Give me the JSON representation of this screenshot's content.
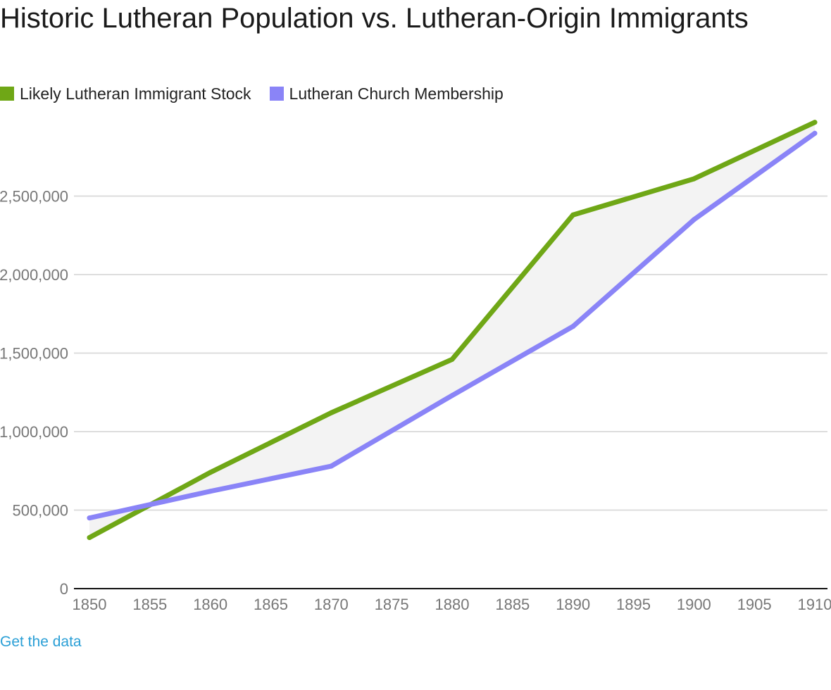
{
  "chart_data": {
    "type": "line",
    "title": "Historic Lutheran Population vs. Lutheran-Origin Immigrants",
    "x": [
      1850,
      1860,
      1870,
      1880,
      1890,
      1900,
      1910
    ],
    "series": [
      {
        "name": "Likely Lutheran Immigrant Stock",
        "color": "#6fa716",
        "values": [
          325000,
          740000,
          1120000,
          1460000,
          2380000,
          2610000,
          2970000
        ]
      },
      {
        "name": "Lutheran Church Membership",
        "color": "#8a84f7",
        "values": [
          450000,
          620000,
          780000,
          1230000,
          1670000,
          2350000,
          2900000
        ]
      }
    ],
    "x_ticks": [
      1850,
      1855,
      1860,
      1865,
      1870,
      1875,
      1880,
      1885,
      1890,
      1895,
      1900,
      1905,
      1910
    ],
    "y_ticks": [
      0,
      500000,
      1000000,
      1500000,
      2000000,
      2500000
    ],
    "y_tick_labels": [
      "0",
      "500,000",
      "1,000,000",
      "1,500,000",
      "2,000,000",
      "2,500,000"
    ],
    "xlim": [
      1850,
      1910
    ],
    "ylim": [
      0,
      3100000
    ],
    "xlabel": "",
    "ylabel": "",
    "grid": "horizontal",
    "legend_position": "top-left",
    "fill_between_color": "#f3f3f3"
  },
  "footer": {
    "link_label": "Get the data"
  }
}
